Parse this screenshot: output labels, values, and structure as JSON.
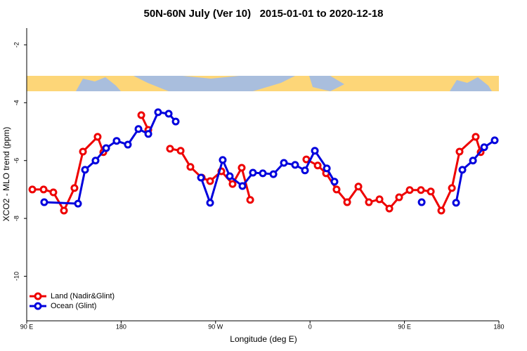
{
  "chart_data": {
    "type": "line",
    "title": "50N-60N July (Ver 10)   2015-01-01 to 2020-12-18",
    "xlabel": "Longitude (deg E)",
    "ylabel": "XCO2 - MLO trend (ppm)",
    "xlim": [
      90,
      540
    ],
    "ylim": [
      -11.54,
      -1.42
    ],
    "xticks": [
      {
        "value": 90,
        "label": "90 E"
      },
      180,
      {
        "value": 270,
        "label": "90 W"
      },
      {
        "value": 360,
        "label": "0"
      },
      {
        "value": 450,
        "label": "90 E"
      },
      {
        "value": 540,
        "label": "180"
      }
    ],
    "yticks": [
      -2,
      -4,
      -6,
      -8,
      -10
    ],
    "legend": "bottom-left",
    "series": [
      {
        "name": "Land (Nadir&Glint)",
        "color": "#ee0000",
        "x": [
          95.4,
          106.1,
          115.4,
          125.5,
          135.5,
          143.6,
          157.6,
          163.0,
          null,
          199.2,
          205.9,
          null,
          226.6,
          236.7,
          246.0,
          256.8,
          264.8,
          275.5,
          286.2,
          294.9,
          303.0,
          null,
          356.5,
          367.3,
          375.3,
          385.3,
          395.4,
          406.1,
          416.1,
          426.2,
          435.6,
          444.9,
          455.0,
          465.7,
          475.1,
          485.1,
          495.2,
          502.5,
          517.9,
          522.6
        ],
        "values": [
          -7.0,
          -7.0,
          -7.1,
          -7.73,
          -6.95,
          -5.69,
          -5.18,
          -5.71,
          null,
          -4.43,
          -4.94,
          null,
          -5.59,
          -5.66,
          -6.22,
          -6.59,
          -6.71,
          -6.37,
          -6.81,
          -6.25,
          -7.36,
          null,
          -5.96,
          -6.17,
          -6.44,
          -7.0,
          -7.44,
          -6.9,
          -7.44,
          -7.34,
          -7.66,
          -7.27,
          -7.02,
          -7.02,
          -7.07,
          -7.73,
          -6.95,
          -5.69,
          -5.18,
          -5.71
        ]
      },
      {
        "name": "Ocean (Glint)",
        "color": "#0000dd",
        "x": [
          106.7,
          138.9,
          145.6,
          155.6,
          165.7,
          175.7,
          186.4,
          196.5,
          205.9,
          215.2,
          225.3,
          232.0,
          null,
          256.1,
          264.8,
          276.8,
          283.5,
          295.6,
          305.6,
          315.0,
          325.1,
          335.1,
          345.8,
          355.2,
          364.6,
          376.0,
          383.3,
          null,
          466.4,
          null,
          499.2,
          505.2,
          515.3,
          526.0,
          536.0
        ],
        "values": [
          -7.44,
          -7.49,
          -6.32,
          -6.0,
          -5.57,
          -5.32,
          -5.45,
          -4.91,
          -5.08,
          -4.33,
          -4.38,
          -4.65,
          null,
          -6.59,
          -7.46,
          -5.98,
          -6.54,
          -6.88,
          -6.42,
          -6.44,
          -6.47,
          -6.08,
          -6.15,
          -6.34,
          -5.66,
          -6.27,
          -6.73,
          null,
          -7.44,
          null,
          -7.46,
          -6.32,
          -6.0,
          -5.54,
          -5.3
        ]
      }
    ]
  }
}
